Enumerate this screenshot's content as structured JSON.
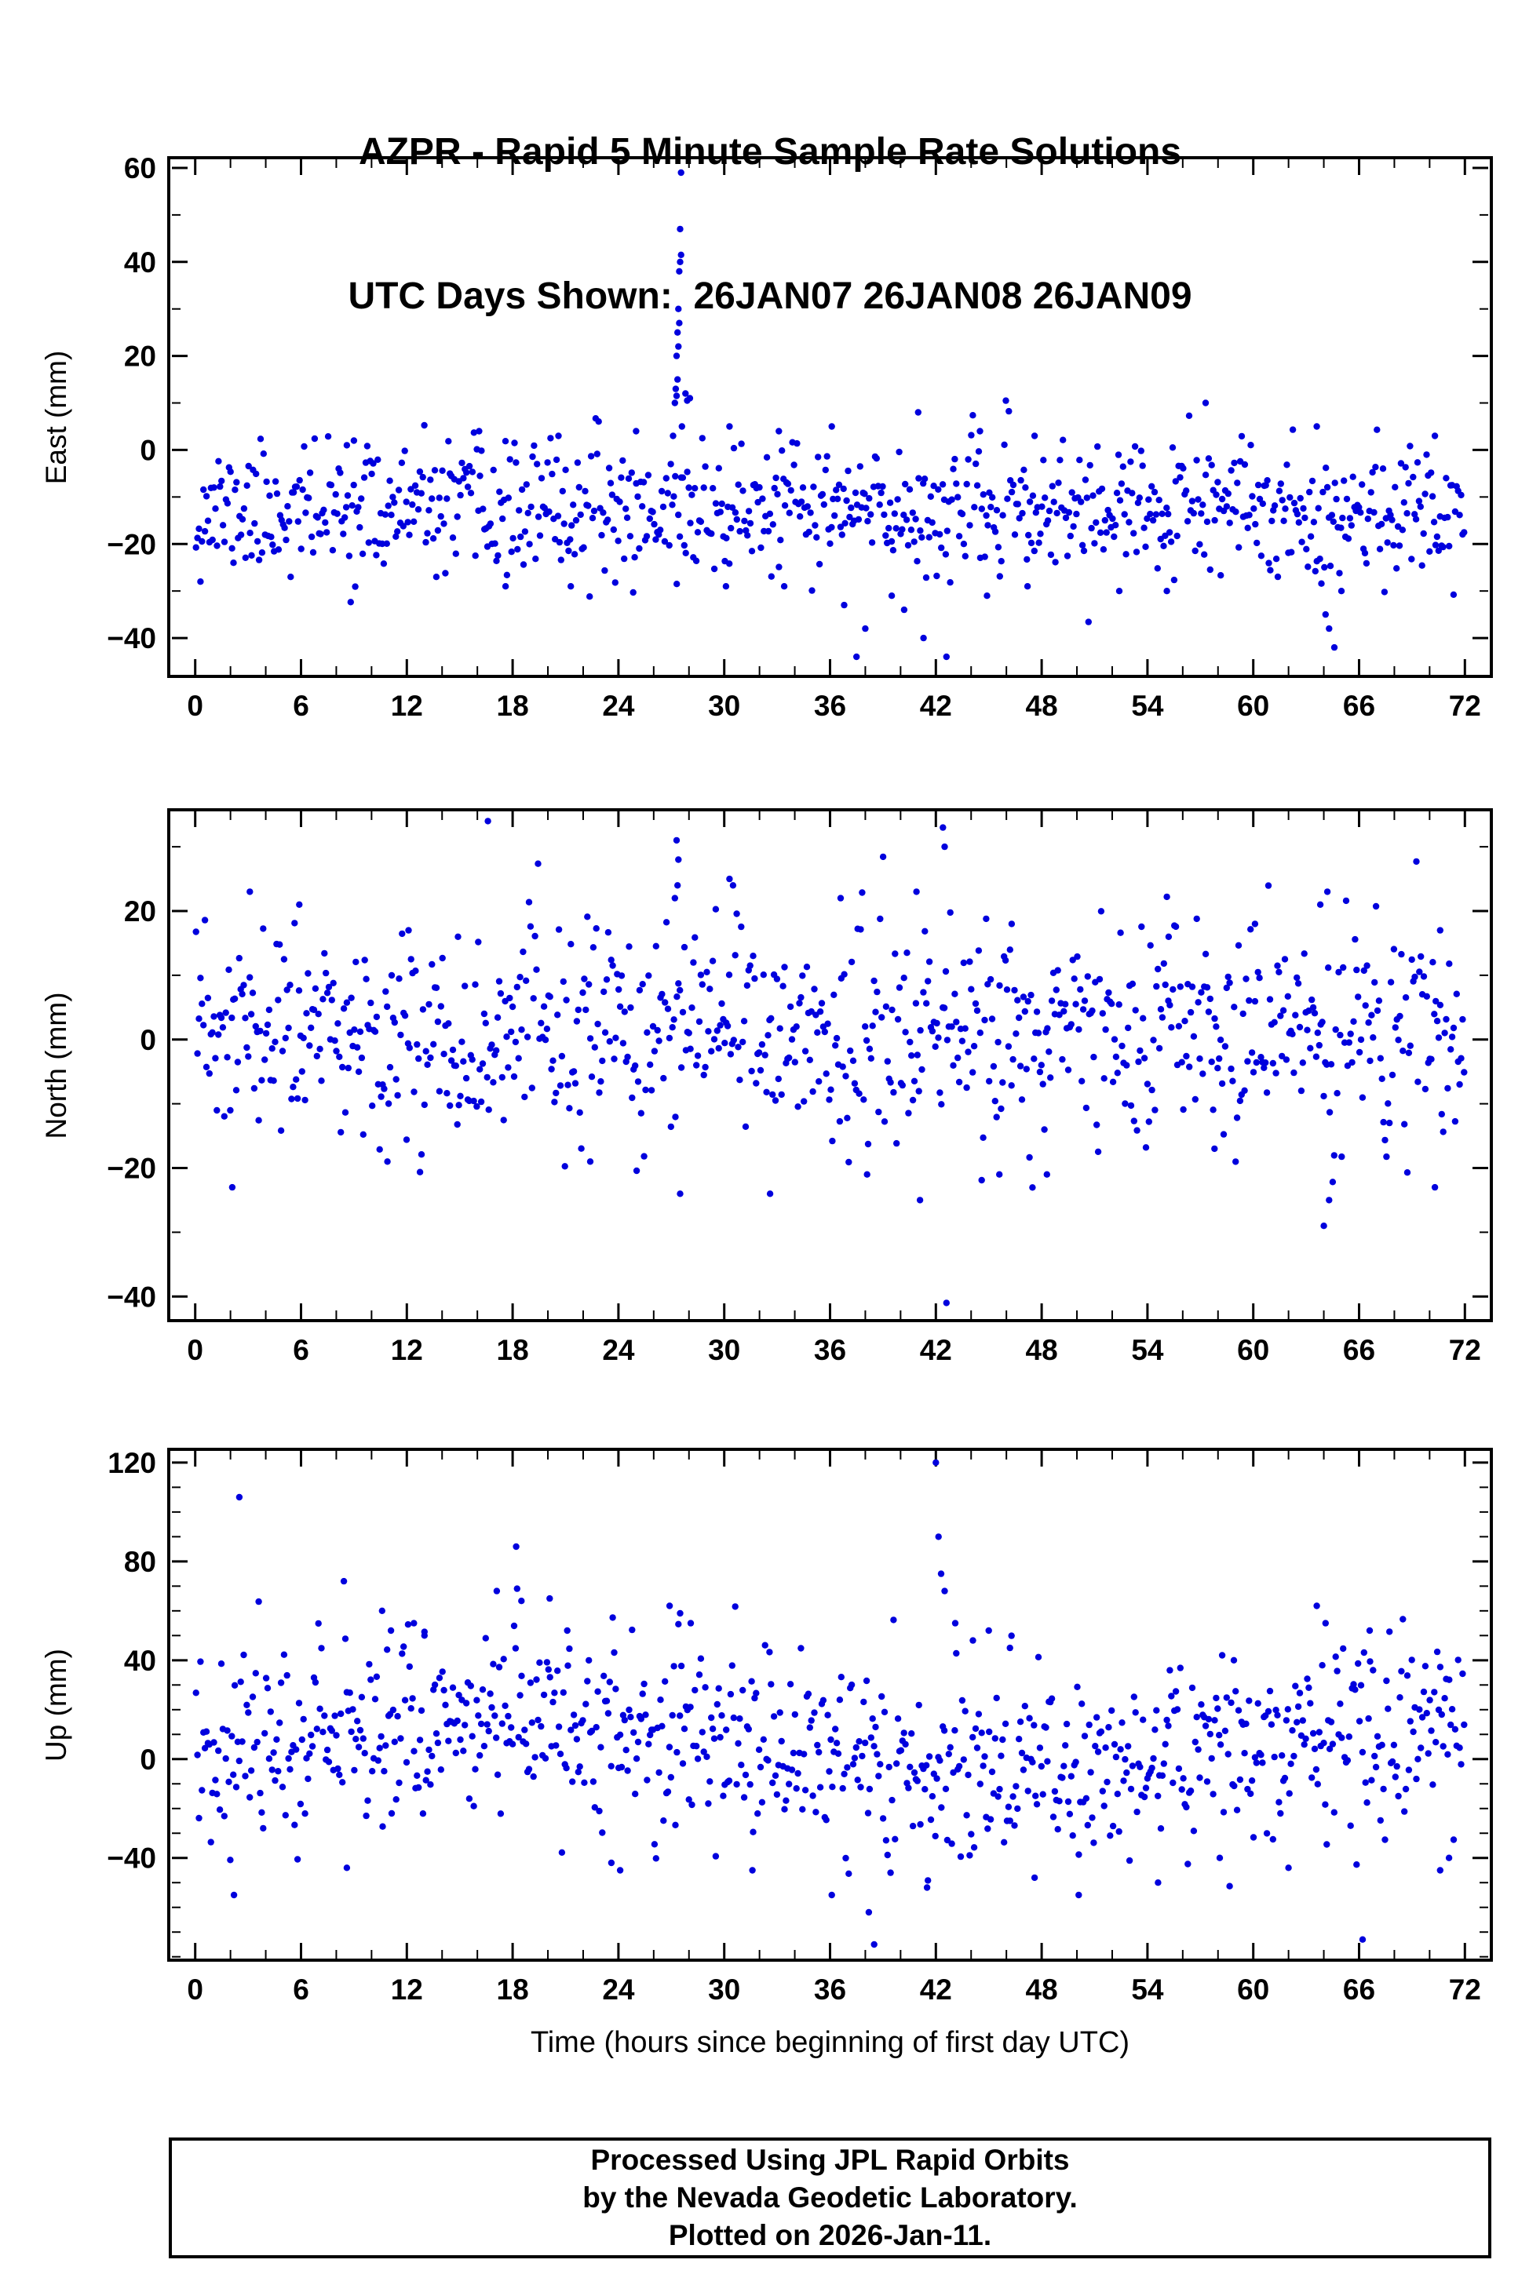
{
  "title": {
    "line1": "AZPR - Rapid 5 Minute Sample Rate Solutions",
    "line2": "UTC Days Shown:  26JAN07 26JAN08 26JAN09"
  },
  "xlabel": "Time (hours since beginning of first day UTC)",
  "footer": {
    "line1": "Processed Using JPL Rapid Orbits",
    "line2": "by the Nevada Geodetic Laboratory.",
    "line3": "Plotted on 2026-Jan-11."
  },
  "chart_data": [
    {
      "type": "scatter",
      "name": "east",
      "ylabel": "East (mm)",
      "xlim": [
        -1.5,
        73.5
      ],
      "ylim": [
        -48.5,
        62.5
      ],
      "xticks": [
        0,
        6,
        12,
        18,
        24,
        30,
        36,
        42,
        48,
        54,
        60,
        66,
        72
      ],
      "xtick_labels": [
        "0",
        "6",
        "12",
        "18",
        "24",
        "30",
        "36",
        "42",
        "48",
        "54",
        "60",
        "66",
        "72"
      ],
      "yticks": [
        60,
        40,
        20,
        0,
        -20,
        -40
      ],
      "ytick_labels": [
        "60",
        "40",
        "20",
        "0",
        "−20",
        "−40"
      ],
      "x_minor": 2,
      "y_minor": 10,
      "marker_color": "#0000dd",
      "marker_radius": 4.2,
      "synthesis": {
        "seed": 11,
        "n": 845,
        "mean": -13,
        "sd": 6.8,
        "wave": {
          "amp": 0,
          "period": 60,
          "peak": 0
        }
      },
      "outliers": [
        [
          27.2,
          10
        ],
        [
          27.3,
          11.5
        ],
        [
          27.25,
          13
        ],
        [
          27.35,
          15
        ],
        [
          27.3,
          20
        ],
        [
          27.4,
          22
        ],
        [
          27.35,
          25
        ],
        [
          27.45,
          27
        ],
        [
          27.4,
          30
        ],
        [
          27.45,
          38
        ],
        [
          27.5,
          40
        ],
        [
          27.55,
          41.5
        ],
        [
          27.5,
          47
        ],
        [
          27.55,
          59
        ],
        [
          27.8,
          12
        ],
        [
          27.9,
          10.5
        ],
        [
          28.05,
          11
        ],
        [
          27.1,
          3
        ],
        [
          27.6,
          5
        ],
        [
          37.5,
          -44
        ],
        [
          38.0,
          -38
        ],
        [
          41.3,
          -40
        ],
        [
          42.6,
          -44
        ],
        [
          36.8,
          -33
        ],
        [
          39.5,
          -31
        ],
        [
          40.2,
          -34
        ],
        [
          64.3,
          -38
        ],
        [
          64.6,
          -42
        ],
        [
          64.1,
          -35
        ],
        [
          65.0,
          -30
        ],
        [
          52.4,
          -30
        ],
        [
          55.1,
          -30
        ],
        [
          30.1,
          -29
        ],
        [
          33.4,
          -29
        ],
        [
          17.6,
          -29
        ],
        [
          21.3,
          -29
        ],
        [
          44.9,
          -31
        ],
        [
          47.2,
          -29
        ],
        [
          57.3,
          10
        ],
        [
          41.0,
          8
        ],
        [
          16.1,
          4
        ],
        [
          20.6,
          3
        ],
        [
          44.5,
          4
        ],
        [
          47.6,
          3
        ],
        [
          63.6,
          5
        ],
        [
          70.3,
          3
        ],
        [
          30.3,
          5
        ],
        [
          33.1,
          4
        ],
        [
          36.1,
          5
        ],
        [
          25.0,
          4
        ],
        [
          9.0,
          2
        ],
        [
          8.6,
          1
        ]
      ]
    },
    {
      "type": "scatter",
      "name": "north",
      "ylabel": "North (mm)",
      "xlim": [
        -1.5,
        73.5
      ],
      "ylim": [
        -44,
        36
      ],
      "xticks": [
        0,
        6,
        12,
        18,
        24,
        30,
        36,
        42,
        48,
        54,
        60,
        66,
        72
      ],
      "xtick_labels": [
        "0",
        "6",
        "12",
        "18",
        "24",
        "30",
        "36",
        "42",
        "48",
        "54",
        "60",
        "66",
        "72"
      ],
      "yticks": [
        20,
        0,
        -20,
        -40
      ],
      "ytick_labels": [
        "20",
        "0",
        "−20",
        "−40"
      ],
      "x_minor": 2,
      "y_minor": 10,
      "marker_color": "#0000dd",
      "marker_radius": 4.2,
      "synthesis": {
        "seed": 23,
        "n": 850,
        "mean": 0.5,
        "sd": 8.2,
        "wave": {
          "amp": 0,
          "period": 60,
          "peak": 0
        }
      },
      "outliers": [
        [
          16.6,
          34
        ],
        [
          27.3,
          31
        ],
        [
          27.4,
          28
        ],
        [
          27.35,
          24
        ],
        [
          27.2,
          22
        ],
        [
          42.4,
          33
        ],
        [
          42.5,
          30
        ],
        [
          3.1,
          23
        ],
        [
          5.9,
          21
        ],
        [
          30.3,
          25
        ],
        [
          30.5,
          24
        ],
        [
          36.6,
          22
        ],
        [
          40.9,
          23
        ],
        [
          64.2,
          23
        ],
        [
          63.8,
          21
        ],
        [
          70.6,
          17
        ],
        [
          12.1,
          17
        ],
        [
          14.9,
          16
        ],
        [
          46.3,
          18
        ],
        [
          55.2,
          16
        ],
        [
          60.1,
          18
        ],
        [
          2.1,
          -23
        ],
        [
          27.5,
          -24
        ],
        [
          32.6,
          -24
        ],
        [
          38.1,
          -21
        ],
        [
          41.1,
          -25
        ],
        [
          42.6,
          -41
        ],
        [
          45.6,
          -21
        ],
        [
          48.3,
          -21
        ],
        [
          64.0,
          -29
        ],
        [
          64.3,
          -25
        ],
        [
          70.3,
          -23
        ],
        [
          10.9,
          -19
        ],
        [
          22.4,
          -19
        ],
        [
          57.8,
          -17
        ]
      ]
    },
    {
      "type": "scatter",
      "name": "up",
      "ylabel": "Up (mm)",
      "xlim": [
        -1.5,
        73.5
      ],
      "ylim": [
        -82,
        126
      ],
      "xticks": [
        0,
        6,
        12,
        18,
        24,
        30,
        36,
        42,
        48,
        54,
        60,
        66,
        72
      ],
      "xtick_labels": [
        "0",
        "6",
        "12",
        "18",
        "24",
        "30",
        "36",
        "42",
        "48",
        "54",
        "60",
        "66",
        "72"
      ],
      "yticks": [
        120,
        80,
        40,
        0,
        -40
      ],
      "ytick_labels": [
        "120",
        "80",
        "40",
        "0",
        "−40"
      ],
      "x_minor": 2,
      "y_minor": 10,
      "marker_color": "#0000dd",
      "marker_radius": 4.2,
      "synthesis": {
        "seed": 37,
        "n": 850,
        "mean": 6,
        "sd": 19,
        "wave": {
          "amp": 10,
          "period": 60,
          "peak": 16
        }
      },
      "outliers": [
        [
          2.5,
          106
        ],
        [
          42.0,
          120
        ],
        [
          42.15,
          90
        ],
        [
          18.2,
          86
        ],
        [
          42.3,
          75
        ],
        [
          42.5,
          68
        ],
        [
          17.1,
          68
        ],
        [
          18.5,
          64
        ],
        [
          26.9,
          62
        ],
        [
          27.5,
          59
        ],
        [
          10.6,
          60
        ],
        [
          11.1,
          52
        ],
        [
          20.1,
          65
        ],
        [
          21.1,
          52
        ],
        [
          63.6,
          62
        ],
        [
          64.1,
          55
        ],
        [
          66.6,
          52
        ],
        [
          28.1,
          55
        ],
        [
          43.1,
          55
        ],
        [
          44.1,
          48
        ],
        [
          12.4,
          55
        ],
        [
          13.0,
          50
        ],
        [
          45.0,
          52
        ],
        [
          46.2,
          45
        ],
        [
          58.9,
          40
        ],
        [
          38.5,
          -75
        ],
        [
          38.2,
          -62
        ],
        [
          66.2,
          -73
        ],
        [
          36.1,
          -55
        ],
        [
          2.2,
          -55
        ],
        [
          47.6,
          -48
        ],
        [
          54.6,
          -50
        ],
        [
          8.6,
          -44
        ],
        [
          24.1,
          -45
        ],
        [
          31.6,
          -45
        ],
        [
          58.1,
          -40
        ],
        [
          70.6,
          -45
        ],
        [
          71.1,
          -40
        ],
        [
          23.6,
          -42
        ],
        [
          50.1,
          -55
        ],
        [
          41.5,
          -52
        ],
        [
          62.0,
          -44
        ]
      ]
    }
  ]
}
